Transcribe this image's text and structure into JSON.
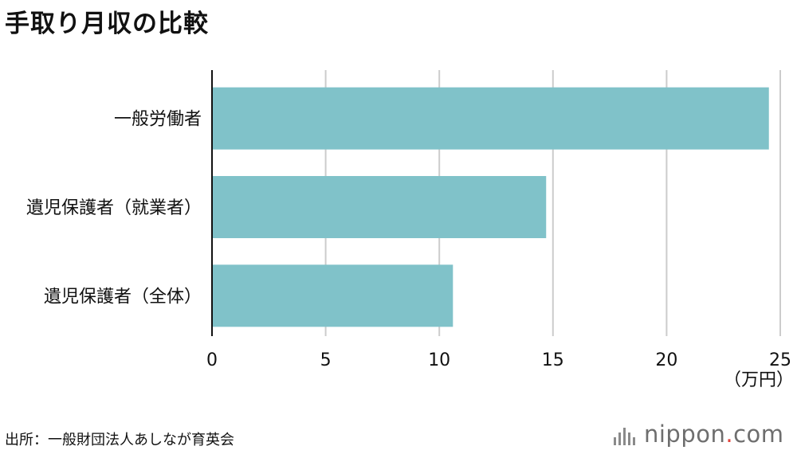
{
  "title": "手取り月収の比較",
  "source": "出所：一般財団法人あしなが育英会",
  "logo": {
    "name": "nippon",
    "dot": ".",
    "tld": "com"
  },
  "colors": {
    "bar": "#80c2c9",
    "grid": "#cccccc",
    "axis": "#111111"
  },
  "chart_data": {
    "type": "bar",
    "orientation": "horizontal",
    "categories": [
      "一般労働者",
      "遺児保護者（就業者）",
      "遺児保護者（全体）"
    ],
    "values": [
      24.5,
      14.7,
      10.6
    ],
    "xlim": [
      0,
      25
    ],
    "xticks": [
      "0",
      "5",
      "10",
      "15",
      "20",
      "25"
    ],
    "xunit": "（万円）",
    "grid": true
  }
}
